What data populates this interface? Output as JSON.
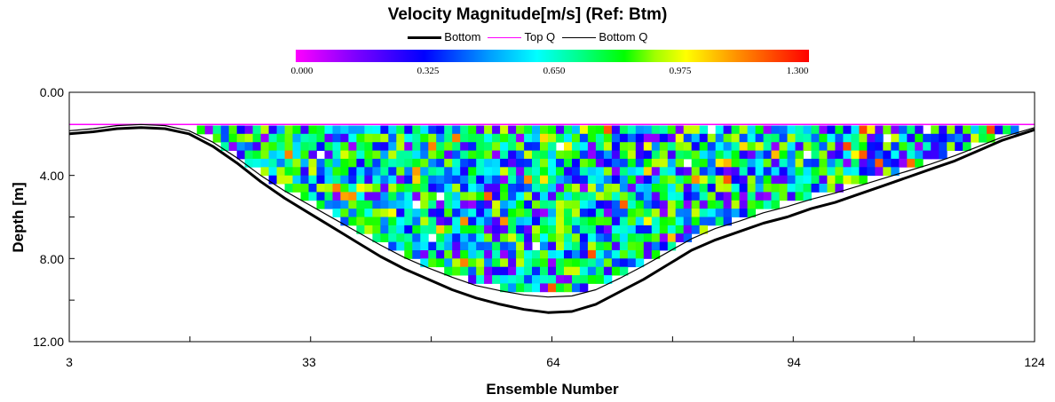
{
  "chart_data": {
    "type": "heatmap",
    "title": "Velocity Magnitude[m/s] (Ref: Btm)",
    "xlabel": "Ensemble Number",
    "ylabel": "Depth [m]",
    "xlim": [
      3,
      124
    ],
    "ylim": [
      0,
      12
    ],
    "x_ticks": [
      "3",
      "33",
      "64",
      "94",
      "124"
    ],
    "y_ticks": [
      "0.00",
      "4.00",
      "8.00",
      "12.00"
    ],
    "y_axis_inverted": true,
    "colorbar": {
      "ticks": [
        "0.000",
        "0.325",
        "0.650",
        "0.975",
        "1.300"
      ],
      "min": 0,
      "max": 1.3,
      "colormap": [
        "#ff00ff",
        "#0000ff",
        "#00ffff",
        "#00ff00",
        "#ffff00",
        "#ff0000"
      ]
    },
    "legend": {
      "position": "top",
      "entries": [
        {
          "label": "Bottom",
          "color": "#000000"
        },
        {
          "label": "Top Q",
          "color": "#ff00ff"
        },
        {
          "label": "Bottom Q",
          "color": "#000000"
        }
      ]
    },
    "series": [
      {
        "name": "Bottom",
        "color": "#000000",
        "x": [
          3,
          6,
          9,
          12,
          15,
          18,
          21,
          24,
          27,
          30,
          33,
          36,
          39,
          42,
          45,
          48,
          51,
          54,
          57,
          60,
          63,
          66,
          69,
          72,
          75,
          78,
          81,
          84,
          87,
          90,
          93,
          96,
          99,
          102,
          105,
          108,
          111,
          114,
          117,
          120,
          124
        ],
        "y": [
          2.0,
          1.9,
          1.75,
          1.7,
          1.75,
          2.0,
          2.6,
          3.4,
          4.3,
          5.1,
          5.8,
          6.5,
          7.2,
          7.9,
          8.5,
          9.0,
          9.5,
          9.9,
          10.2,
          10.45,
          10.6,
          10.55,
          10.2,
          9.6,
          9.0,
          8.3,
          7.6,
          7.1,
          6.7,
          6.3,
          6.0,
          5.6,
          5.3,
          4.9,
          4.5,
          4.1,
          3.7,
          3.3,
          2.8,
          2.3,
          1.8
        ]
      },
      {
        "name": "Top Q",
        "color": "#ff00ff",
        "x": [
          3,
          124
        ],
        "y": [
          1.55,
          1.55
        ]
      },
      {
        "name": "Bottom Q",
        "color": "#000000",
        "x": [
          3,
          6,
          9,
          12,
          15,
          18,
          21,
          24,
          27,
          30,
          33,
          36,
          39,
          42,
          45,
          48,
          51,
          54,
          57,
          60,
          63,
          66,
          69,
          72,
          75,
          78,
          81,
          84,
          87,
          90,
          93,
          96,
          99,
          102,
          105,
          108,
          111,
          114,
          117,
          120,
          124
        ],
        "y": [
          1.85,
          1.75,
          1.6,
          1.55,
          1.6,
          1.85,
          2.4,
          3.15,
          4.0,
          4.75,
          5.4,
          6.05,
          6.7,
          7.35,
          7.95,
          8.45,
          8.9,
          9.3,
          9.55,
          9.75,
          9.85,
          9.8,
          9.5,
          8.95,
          8.35,
          7.7,
          7.05,
          6.55,
          6.2,
          5.8,
          5.5,
          5.15,
          4.85,
          4.5,
          4.15,
          3.8,
          3.45,
          3.05,
          2.6,
          2.15,
          1.7
        ]
      }
    ],
    "cells": {
      "x_start": 5,
      "x_end": 123,
      "y_top": 1.6,
      "cell_height_m": 0.4,
      "value_range": [
        0,
        1.3
      ],
      "typical_range": [
        0.1,
        1.0
      ]
    }
  }
}
